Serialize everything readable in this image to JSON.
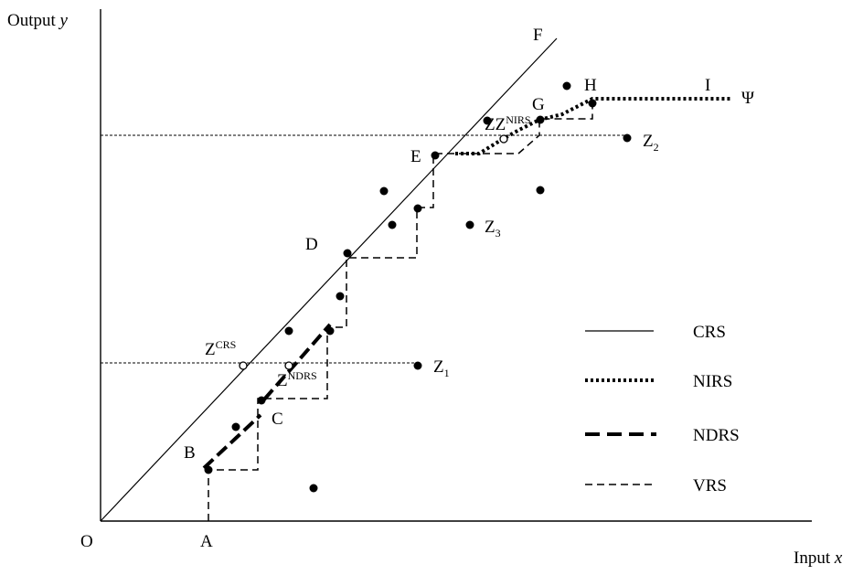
{
  "axes": {
    "y_label_text": "Output ",
    "y_label_var": "y",
    "x_label_text": "Input ",
    "x_label_var": "x",
    "origin": "O"
  },
  "points": {
    "A": "A",
    "B": "B",
    "C": "C",
    "D": "D",
    "E": "E",
    "F": "F",
    "G": "G",
    "H": "H",
    "I": "I",
    "psi": "Ψ",
    "Z1_main": "Z",
    "Z1_sub": "1",
    "Z2_main": "Z",
    "Z2_sub": "2",
    "Z3_main": "Z",
    "Z3_sub": "3",
    "Zcrs_main": "Z",
    "Zcrs_sup": "CRS",
    "Zndrs_main": "Z",
    "Zndrs_sup": "NDRS",
    "Znirs_main": "ZZ",
    "Znirs_sup": "NIRS"
  },
  "legend": [
    {
      "label": "CRS",
      "style": "solid-thin"
    },
    {
      "label": "NIRS",
      "style": "dotted-thick"
    },
    {
      "label": "NDRS",
      "style": "dashed-thick"
    },
    {
      "label": "VRS",
      "style": "dashed-thin"
    }
  ],
  "colors": {
    "ink": "#000000",
    "background": "#ffffff"
  }
}
